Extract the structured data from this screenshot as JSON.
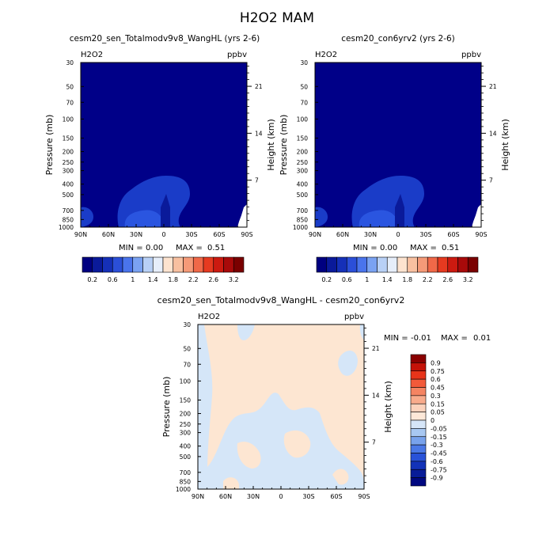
{
  "page_title": "H2O2 MAM",
  "colors": {
    "background": "#000088",
    "blob_mid": "#1a3cc8",
    "blob_inner": "#2a55e0",
    "diff_pos": "#fde6d2",
    "diff_neg": "#d5e6f8"
  },
  "chart_data": [
    {
      "type": "heatmap",
      "title": "cesm20_sen_Totalmodv9v8_WangHL (yrs 2-6)",
      "left_label": "H2O2",
      "units": "ppbv",
      "ylabel": "Pressure (mb)",
      "y2label": "Height (km)",
      "x_ticks": [
        "90N",
        "60N",
        "30N",
        "0",
        "30S",
        "60S",
        "90S"
      ],
      "y_ticks": [
        "30",
        "50",
        "70",
        "100",
        "150",
        "200",
        "250",
        "300",
        "400",
        "500",
        "700",
        "850",
        "1000"
      ],
      "y2_ticks": [
        "21",
        "14",
        "7"
      ],
      "stats": {
        "min_label": "MIN =",
        "min": "0.00",
        "max_label": "MAX =",
        "max": "0.51"
      }
    },
    {
      "type": "heatmap",
      "title": "cesm20_con6yrv2 (yrs 2-6)",
      "left_label": "H2O2",
      "units": "ppbv",
      "ylabel": "Pressure (mb)",
      "y2label": "Height (km)",
      "x_ticks": [
        "90N",
        "60N",
        "30N",
        "0",
        "30S",
        "60S",
        "90S"
      ],
      "y_ticks": [
        "30",
        "50",
        "70",
        "100",
        "150",
        "200",
        "250",
        "300",
        "400",
        "500",
        "700",
        "850",
        "1000"
      ],
      "y2_ticks": [
        "21",
        "14",
        "7"
      ],
      "stats": {
        "min_label": "MIN =",
        "min": "0.00",
        "max_label": "MAX =",
        "max": "0.51"
      }
    },
    {
      "type": "heatmap",
      "title": "cesm20_sen_Totalmodv9v8_WangHL - cesm20_con6yrv2",
      "left_label": "H2O2",
      "units": "ppbv",
      "ylabel": "Pressure (mb)",
      "y2label": "Height (km)",
      "x_ticks": [
        "90N",
        "60N",
        "30N",
        "0",
        "30S",
        "60S",
        "90S"
      ],
      "y_ticks": [
        "30",
        "50",
        "70",
        "100",
        "150",
        "200",
        "250",
        "300",
        "400",
        "500",
        "700",
        "850",
        "1000"
      ],
      "y2_ticks": [
        "21",
        "14",
        "7"
      ],
      "stats": {
        "min_label": "MIN =",
        "min": "-0.01",
        "max_label": "MAX =",
        "max": "0.01"
      }
    }
  ],
  "colorbars": {
    "top": {
      "labels": [
        "0.2",
        "0.6",
        "1",
        "1.4",
        "1.8",
        "2.2",
        "2.6",
        "3.2"
      ],
      "colors": [
        "#000080",
        "#0a1a9a",
        "#1530b8",
        "#2b4fd8",
        "#4a74ec",
        "#7aa2f2",
        "#b8d0f6",
        "#e6eefa",
        "#fde3cf",
        "#f8c0a0",
        "#f59a78",
        "#f06848",
        "#e63a20",
        "#cc1a10",
        "#a80a0a",
        "#7a0000"
      ]
    },
    "diff": {
      "labels": [
        "0.9",
        "0.75",
        "0.6",
        "0.45",
        "0.3",
        "0.15",
        "0.05",
        "0",
        "-0.05",
        "-0.15",
        "-0.3",
        "-0.45",
        "-0.6",
        "-0.75",
        "-0.9"
      ],
      "colors": [
        "#8a0000",
        "#c41208",
        "#e8341a",
        "#f25a3a",
        "#f58462",
        "#f8ab8c",
        "#fbd2bc",
        "#fde8d8",
        "#d6e6f8",
        "#a8c8f2",
        "#78a2ec",
        "#4a78e6",
        "#2852d8",
        "#1232b8",
        "#081c98",
        "#000880"
      ]
    }
  }
}
